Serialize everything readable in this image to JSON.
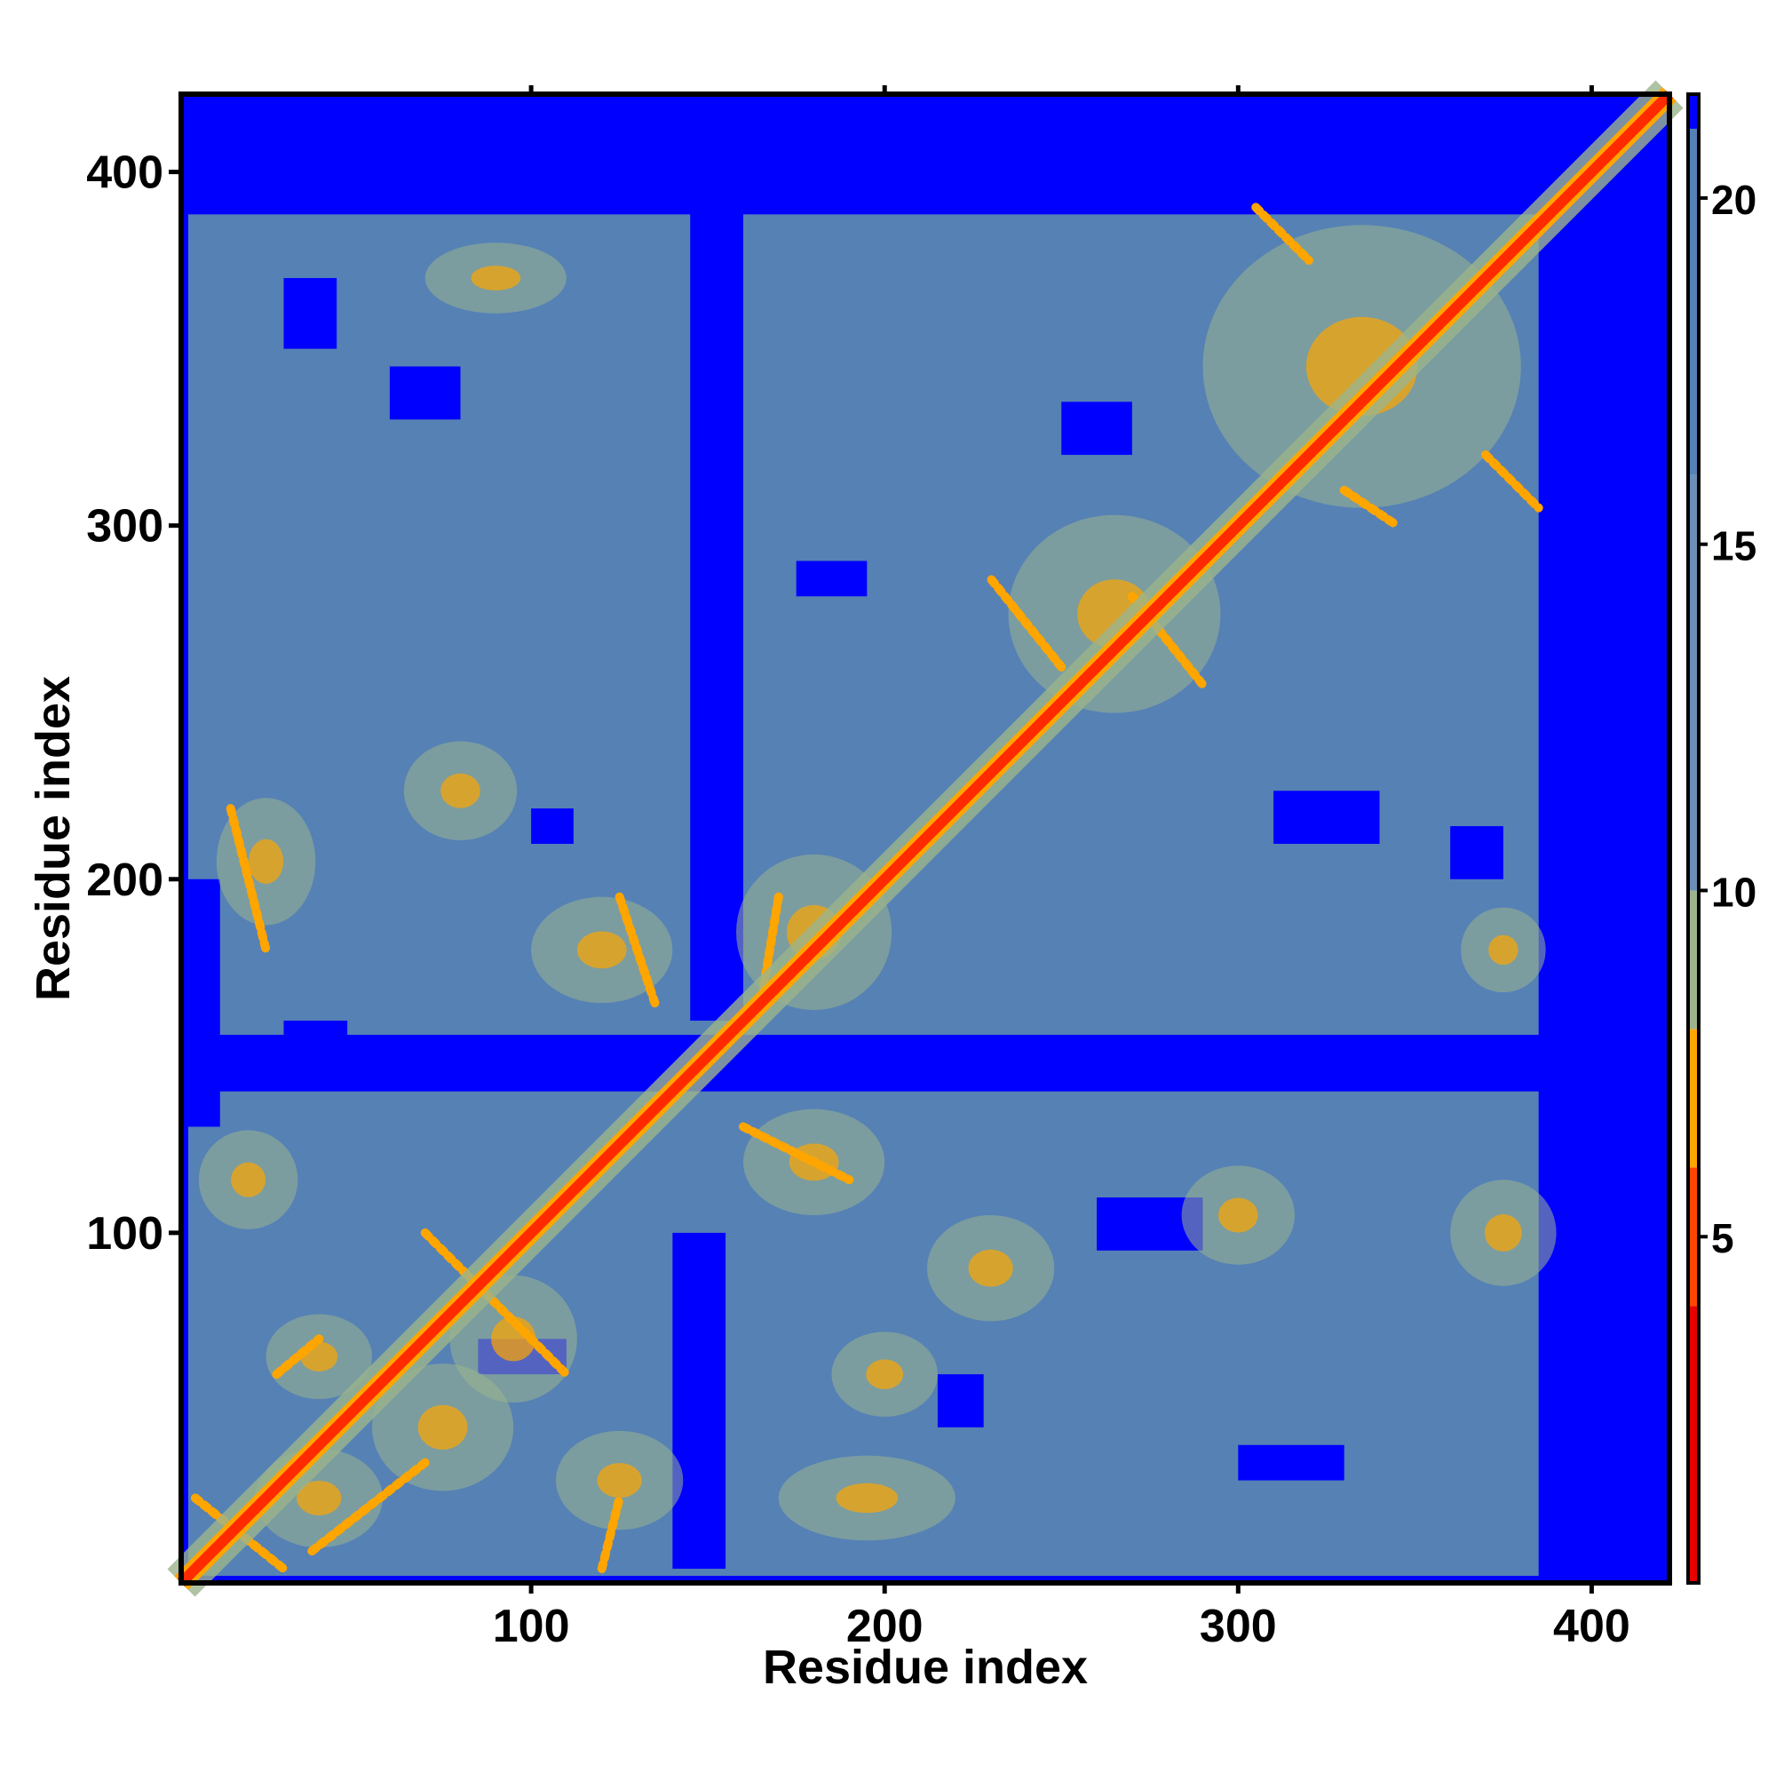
{
  "chart_data": {
    "type": "heatmap",
    "title": "",
    "xlabel": "Residue index",
    "ylabel": "Residue index",
    "xlim": [
      1,
      422
    ],
    "ylim": [
      1,
      422
    ],
    "x_ticks": [
      100,
      200,
      300,
      400
    ],
    "y_ticks": [
      100,
      200,
      300,
      400
    ],
    "colorbar": {
      "range": [
        0,
        21.5
      ],
      "ticks": [
        5,
        10,
        15,
        20
      ],
      "colors": {
        "lt4": "#e60000",
        "4to6": "#ff4500",
        "6to8": "#ffa500",
        "8to10": "#9bb48c",
        "10to16": "#6b8fb8",
        "16to21": "#5581b5",
        "gt21": "#0000ff"
      },
      "bands": [
        {
          "from": 0,
          "to": 4,
          "color_key": "lt4"
        },
        {
          "from": 4,
          "to": 6,
          "color_key": "4to6"
        },
        {
          "from": 6,
          "to": 8,
          "color_key": "6to8"
        },
        {
          "from": 8,
          "to": 10,
          "color_key": "8to10"
        },
        {
          "from": 10,
          "to": 16,
          "color_key": "10to16"
        },
        {
          "from": 16,
          "to": 21,
          "color_key": "16to21"
        },
        {
          "from": 21,
          "to": 21.5,
          "color_key": "gt21"
        }
      ]
    },
    "matrix_size": 422,
    "diagonal_color": "#ff2a00",
    "background_color": "#0000ff",
    "contact_region": {
      "x": [
        3,
        385
      ],
      "y": [
        3,
        388
      ]
    },
    "blue_regions": [
      {
        "x": [
          1,
          422
        ],
        "y": [
          392,
          422
        ]
      },
      {
        "x": [
          386,
          422
        ],
        "y": [
          1,
          392
        ]
      },
      {
        "x": [
          145,
          160
        ],
        "y": [
          160,
          392
        ]
      },
      {
        "x": [
          140,
          155
        ],
        "y": [
          5,
          100
        ]
      },
      {
        "x": [
          3,
          422
        ],
        "y": [
          140,
          156
        ]
      },
      {
        "x": [
          3,
          12
        ],
        "y": [
          130,
          200
        ]
      },
      {
        "x": [
          30,
          48
        ],
        "y": [
          150,
          160
        ]
      },
      {
        "x": [
          215,
          228
        ],
        "y": [
          45,
          60
        ]
      },
      {
        "x": [
          175,
          195
        ],
        "y": [
          280,
          290
        ]
      },
      {
        "x": [
          250,
          270
        ],
        "y": [
          320,
          335
        ]
      },
      {
        "x": [
          60,
          80
        ],
        "y": [
          330,
          345
        ]
      },
      {
        "x": [
          100,
          112
        ],
        "y": [
          210,
          220
        ]
      },
      {
        "x": [
          310,
          340
        ],
        "y": [
          210,
          225
        ]
      },
      {
        "x": [
          360,
          375
        ],
        "y": [
          200,
          215
        ]
      },
      {
        "x": [
          85,
          110
        ],
        "y": [
          60,
          70
        ]
      },
      {
        "x": [
          260,
          290
        ],
        "y": [
          95,
          110
        ]
      },
      {
        "x": [
          300,
          330
        ],
        "y": [
          30,
          40
        ]
      },
      {
        "x": [
          30,
          45
        ],
        "y": [
          350,
          370
        ]
      }
    ],
    "contact_blobs": [
      {
        "cx": 40,
        "cy": 65,
        "rx": 15,
        "ry": 12,
        "level": "8to10"
      },
      {
        "cx": 40,
        "cy": 25,
        "rx": 18,
        "ry": 14,
        "level": "8to10"
      },
      {
        "cx": 75,
        "cy": 45,
        "rx": 20,
        "ry": 18,
        "level": "8to10"
      },
      {
        "cx": 95,
        "cy": 70,
        "rx": 18,
        "ry": 18,
        "level": "8to10"
      },
      {
        "cx": 20,
        "cy": 115,
        "rx": 14,
        "ry": 14,
        "level": "8to10"
      },
      {
        "cx": 125,
        "cy": 30,
        "rx": 18,
        "ry": 14,
        "level": "8to10"
      },
      {
        "cx": 195,
        "cy": 25,
        "rx": 25,
        "ry": 12,
        "level": "8to10"
      },
      {
        "cx": 200,
        "cy": 60,
        "rx": 15,
        "ry": 12,
        "level": "8to10"
      },
      {
        "cx": 180,
        "cy": 120,
        "rx": 20,
        "ry": 15,
        "level": "8to10"
      },
      {
        "cx": 230,
        "cy": 90,
        "rx": 18,
        "ry": 15,
        "level": "8to10"
      },
      {
        "cx": 180,
        "cy": 185,
        "rx": 22,
        "ry": 22,
        "level": "8to10"
      },
      {
        "cx": 120,
        "cy": 180,
        "rx": 20,
        "ry": 15,
        "level": "8to10"
      },
      {
        "cx": 25,
        "cy": 205,
        "rx": 14,
        "ry": 18,
        "level": "8to10"
      },
      {
        "cx": 80,
        "cy": 225,
        "rx": 16,
        "ry": 14,
        "level": "8to10"
      },
      {
        "cx": 265,
        "cy": 275,
        "rx": 30,
        "ry": 28,
        "level": "8to10"
      },
      {
        "cx": 335,
        "cy": 345,
        "rx": 45,
        "ry": 40,
        "level": "8to10"
      },
      {
        "cx": 90,
        "cy": 370,
        "rx": 20,
        "ry": 10,
        "level": "8to10"
      },
      {
        "cx": 300,
        "cy": 105,
        "rx": 16,
        "ry": 14,
        "level": "8to10"
      },
      {
        "cx": 375,
        "cy": 100,
        "rx": 15,
        "ry": 15,
        "level": "8to10"
      },
      {
        "cx": 375,
        "cy": 180,
        "rx": 12,
        "ry": 12,
        "level": "8to10"
      }
    ],
    "contact_streaks": [
      {
        "x1": 5,
        "y1": 25,
        "x2": 30,
        "y2": 5,
        "level": "6to8"
      },
      {
        "x1": 28,
        "y1": 60,
        "x2": 40,
        "y2": 70,
        "level": "6to8"
      },
      {
        "x1": 38,
        "y1": 10,
        "x2": 70,
        "y2": 35,
        "level": "6to8"
      },
      {
        "x1": 70,
        "y1": 100,
        "x2": 110,
        "y2": 60,
        "level": "6to8"
      },
      {
        "x1": 120,
        "y1": 5,
        "x2": 125,
        "y2": 25,
        "level": "6to8"
      },
      {
        "x1": 170,
        "y1": 195,
        "x2": 165,
        "y2": 165,
        "level": "6to8"
      },
      {
        "x1": 160,
        "y1": 130,
        "x2": 190,
        "y2": 115,
        "level": "6to8"
      },
      {
        "x1": 250,
        "y1": 260,
        "x2": 230,
        "y2": 285,
        "level": "6to8"
      },
      {
        "x1": 270,
        "y1": 280,
        "x2": 290,
        "y2": 255,
        "level": "6to8"
      },
      {
        "x1": 305,
        "y1": 390,
        "x2": 320,
        "y2": 375,
        "level": "6to8"
      },
      {
        "x1": 330,
        "y1": 310,
        "x2": 345,
        "y2": 300,
        "level": "6to8"
      },
      {
        "x1": 370,
        "y1": 320,
        "x2": 385,
        "y2": 305,
        "level": "6to8"
      },
      {
        "x1": 15,
        "y1": 220,
        "x2": 25,
        "y2": 180,
        "level": "6to8"
      },
      {
        "x1": 125,
        "y1": 195,
        "x2": 135,
        "y2": 165,
        "level": "6to8"
      }
    ]
  }
}
